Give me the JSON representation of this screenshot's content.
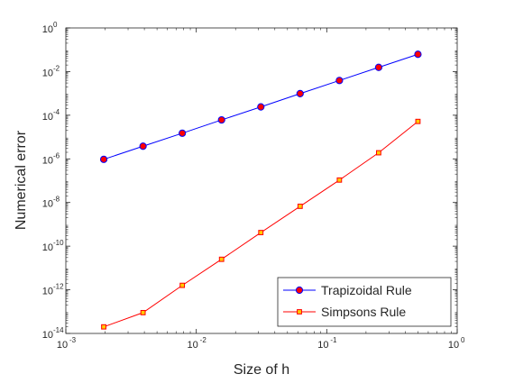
{
  "chart_data": {
    "type": "line",
    "title": "",
    "xlabel": "Size of h",
    "ylabel": "Numerical error",
    "x_scale": "log",
    "y_scale": "log",
    "xlim": [
      0.001,
      1
    ],
    "ylim": [
      1e-14,
      1
    ],
    "x_ticks": [
      {
        "value": 0.001,
        "base": "10",
        "exp": "-3"
      },
      {
        "value": 0.01,
        "base": "10",
        "exp": "-2"
      },
      {
        "value": 0.1,
        "base": "10",
        "exp": "-1"
      },
      {
        "value": 1,
        "base": "10",
        "exp": "0"
      }
    ],
    "y_ticks": [
      {
        "value": 1e-14,
        "base": "10",
        "exp": "-14"
      },
      {
        "value": 1e-12,
        "base": "10",
        "exp": "-12"
      },
      {
        "value": 1e-10,
        "base": "10",
        "exp": "-10"
      },
      {
        "value": 1e-08,
        "base": "10",
        "exp": "-8"
      },
      {
        "value": 1e-06,
        "base": "10",
        "exp": "-6"
      },
      {
        "value": 0.0001,
        "base": "10",
        "exp": "-4"
      },
      {
        "value": 0.01,
        "base": "10",
        "exp": "-2"
      },
      {
        "value": 1,
        "base": "10",
        "exp": "0"
      }
    ],
    "grid": false,
    "legend_position": "bottom-right",
    "x": [
      0.001953125,
      0.00390625,
      0.0078125,
      0.015625,
      0.03125,
      0.0625,
      0.125,
      0.25,
      0.5
    ],
    "series": [
      {
        "name": "Trapizoidal Rule",
        "color": "#0000ff",
        "marker": "circle",
        "marker_fill": "#ff0000",
        "values": [
          9.5e-07,
          3.8e-06,
          1.5e-05,
          6.1e-05,
          0.00024,
          0.00098,
          0.0039,
          0.0156,
          0.062
        ]
      },
      {
        "name": "Simpsons Rule",
        "color": "#ff0000",
        "marker": "square",
        "marker_fill": "#ffcc00",
        "values": [
          2e-14,
          9e-14,
          1.6e-12,
          2.5e-11,
          4.2e-10,
          6.7e-09,
          1.07e-07,
          1.9e-06,
          5.2e-05
        ]
      }
    ]
  }
}
